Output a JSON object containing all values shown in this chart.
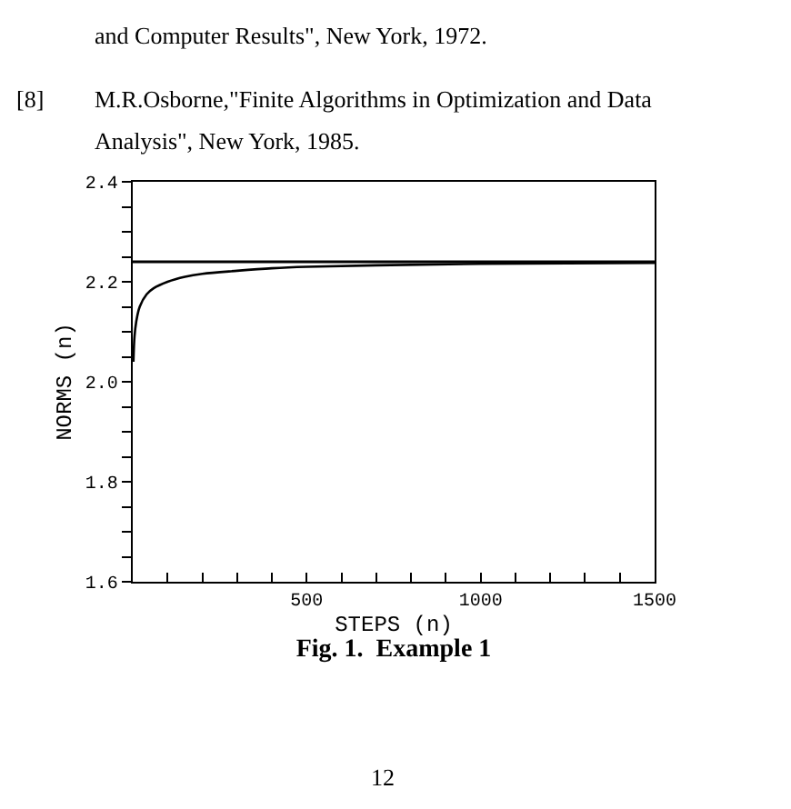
{
  "chart_data": {
    "type": "line",
    "title": "Fig. 1.  Example 1",
    "xlabel": "STEPS (n)",
    "ylabel": "NORMS (n)",
    "annotations": [
      "and Computer Results\", New York, 1972.",
      "[8]",
      "M.R.Osborne,\"Finite Algorithms in Optimization and Data",
      "Analysis\", New York, 1985.",
      "12"
    ],
    "x": [
      2,
      5,
      10,
      20,
      40,
      60,
      100,
      150,
      200,
      300,
      400,
      500,
      700,
      1000,
      1500
    ],
    "series": [
      {
        "color": "#000000",
        "values": [
          2.04,
          2.09,
          2.12,
          2.15,
          2.175,
          2.187,
          2.2,
          2.21,
          2.216,
          2.222,
          2.227,
          2.23,
          2.233,
          2.236,
          2.238
        ]
      }
    ],
    "ref_lines": [
      {
        "axis": "y",
        "value": 2.24,
        "color": "#000000"
      }
    ],
    "xlim": [
      0,
      1500
    ],
    "xticks": [
      {
        "value": 100,
        "label": null
      },
      {
        "value": 200,
        "label": null
      },
      {
        "value": 300,
        "label": null
      },
      {
        "value": 400,
        "label": null
      },
      500,
      {
        "value": 600,
        "label": null
      },
      {
        "value": 700,
        "label": null
      },
      {
        "value": 800,
        "label": null
      },
      {
        "value": 900,
        "label": null
      },
      1000,
      {
        "value": 1100,
        "label": null
      },
      {
        "value": 1200,
        "label": null
      },
      {
        "value": 1300,
        "label": null
      },
      {
        "value": 1400,
        "label": null
      },
      1500
    ],
    "ylim": [
      1.6,
      2.4
    ],
    "yticks": [
      {
        "value": 1.6,
        "label": "1.6"
      },
      {
        "value": 1.65,
        "label": null
      },
      {
        "value": 1.7,
        "label": null
      },
      {
        "value": 1.75,
        "label": null
      },
      {
        "value": 1.8,
        "label": "1.8"
      },
      {
        "value": 1.85,
        "label": null
      },
      {
        "value": 1.9,
        "label": null
      },
      {
        "value": 1.95,
        "label": null
      },
      {
        "value": 2.0,
        "label": "2.0"
      },
      {
        "value": 2.05,
        "label": null
      },
      {
        "value": 2.1,
        "label": null
      },
      {
        "value": 2.15,
        "label": null
      },
      {
        "value": 2.2,
        "label": "2.2"
      },
      {
        "value": 2.25,
        "label": null
      },
      {
        "value": 2.3,
        "label": null
      },
      {
        "value": 2.35,
        "label": null
      },
      {
        "value": 2.4,
        "label": "2.4"
      }
    ],
    "grid": false,
    "marker": "none",
    "line_style": "solid"
  }
}
